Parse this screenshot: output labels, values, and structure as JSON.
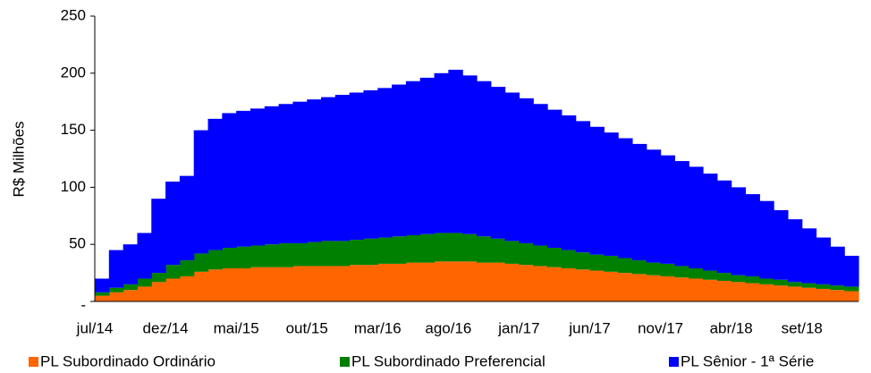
{
  "chart_data": {
    "type": "stacked-area",
    "y_label": "R$ Milhões",
    "categories": [
      "jul/14",
      null,
      null,
      null,
      null,
      "dez/14",
      null,
      null,
      null,
      null,
      "mai/15",
      null,
      null,
      null,
      null,
      "out/15",
      null,
      null,
      null,
      null,
      "mar/16",
      null,
      null,
      null,
      null,
      "ago/16",
      null,
      null,
      null,
      null,
      "jan/17",
      null,
      null,
      null,
      null,
      "jun/17",
      null,
      null,
      null,
      null,
      "nov/17",
      null,
      null,
      null,
      null,
      "abr/18",
      null,
      null,
      null,
      null,
      "set/18",
      null,
      null,
      null
    ],
    "ylim": [
      0,
      250
    ],
    "yticks": [
      {
        "value": 0,
        "label": "-"
      },
      50,
      100,
      150,
      200,
      250
    ],
    "legend": "bottom",
    "series": [
      {
        "name": "PL Subordinado Ordinário",
        "color": "#ff6600",
        "values": [
          5,
          8,
          10,
          13,
          17,
          20,
          22,
          26,
          28,
          29,
          29,
          30,
          30,
          30,
          31,
          31,
          31,
          31,
          32,
          32,
          33,
          33,
          34,
          34,
          35,
          35,
          35,
          34,
          34,
          33,
          32,
          31,
          30,
          29,
          28,
          27,
          26,
          25,
          24,
          23,
          22,
          21,
          20,
          19,
          18,
          17,
          16,
          15,
          14,
          13,
          12,
          11,
          10,
          9
        ]
      },
      {
        "name": "PL Subordinado Preferencial",
        "color": "#008000",
        "values": [
          3,
          4,
          5,
          7,
          8,
          12,
          14,
          16,
          17,
          18,
          19,
          19,
          20,
          21,
          20,
          21,
          22,
          22,
          22,
          23,
          23,
          24,
          24,
          25,
          25,
          25,
          24,
          23,
          21,
          20,
          19,
          18,
          17,
          16,
          15,
          14,
          14,
          13,
          12,
          11,
          11,
          10,
          9,
          8,
          7,
          6,
          6,
          5,
          5,
          4,
          4,
          4,
          4,
          4
        ]
      },
      {
        "name": "PL Sênior - 1ª Série",
        "color": "#0000ff",
        "values": [
          12,
          33,
          35,
          40,
          65,
          73,
          74,
          108,
          115,
          118,
          119,
          120,
          121,
          122,
          124,
          125,
          126,
          128,
          129,
          130,
          131,
          133,
          135,
          137,
          140,
          143,
          139,
          136,
          133,
          130,
          127,
          124,
          121,
          118,
          115,
          112,
          108,
          105,
          102,
          99,
          95,
          92,
          89,
          85,
          81,
          77,
          72,
          68,
          61,
          55,
          48,
          41,
          34,
          27
        ]
      }
    ]
  }
}
